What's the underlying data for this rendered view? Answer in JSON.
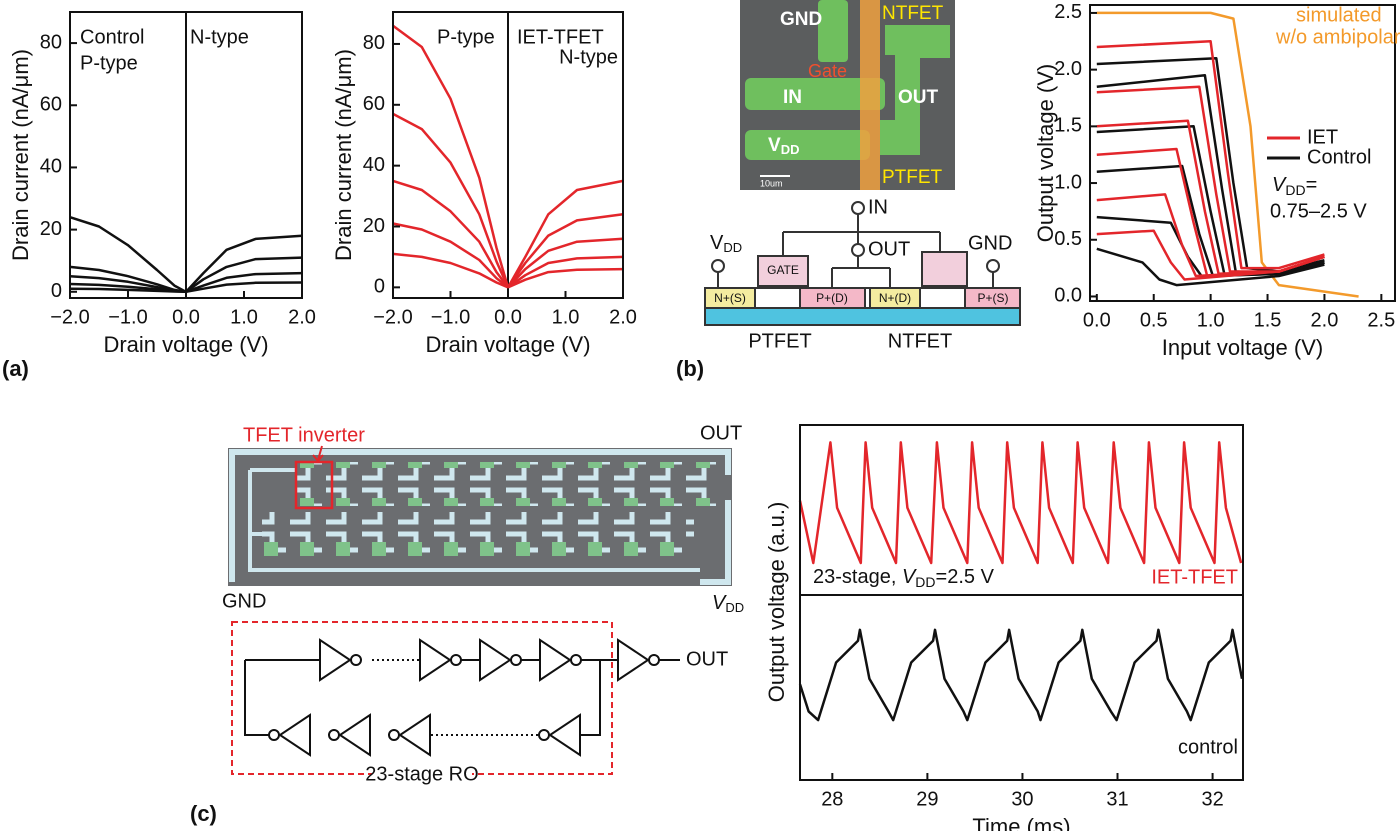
{
  "chart_data": [
    {
      "type": "line",
      "xlabel": "Drain voltage (V)",
      "ylabel": "Drain current (nA/μm)",
      "xlim": [
        -2,
        2
      ],
      "ylim": [
        -2,
        90
      ],
      "xticks": [
        {
          "value": -2,
          "label": "−2.0"
        },
        {
          "value": -1,
          "label": "−1.0"
        },
        {
          "value": 0,
          "label": "0.0"
        },
        {
          "value": 1,
          "label": "1.0"
        },
        {
          "value": 2,
          "label": "2.0"
        }
      ],
      "yticks": [
        0,
        20,
        40,
        60,
        80
      ],
      "vline": 0,
      "annotations": [
        "Control",
        "P-type",
        "N-type"
      ],
      "series": [
        {
          "color": "#111111",
          "x": [
            -2,
            -1.5,
            -1,
            -0.5,
            -0.2,
            0
          ],
          "values": [
            24,
            21,
            15,
            7,
            2,
            0
          ]
        },
        {
          "color": "#111111",
          "x": [
            -2,
            -1.5,
            -1,
            -0.5,
            -0.2,
            0
          ],
          "values": [
            8,
            7,
            5,
            2.4,
            0.6,
            0
          ]
        },
        {
          "color": "#111111",
          "x": [
            -2,
            -1.5,
            -1,
            -0.5,
            -0.2,
            0
          ],
          "values": [
            5,
            4.4,
            3.2,
            1.5,
            0.4,
            0
          ]
        },
        {
          "color": "#111111",
          "x": [
            -2,
            -1.5,
            -1,
            -0.5,
            -0.2,
            0
          ],
          "values": [
            2.5,
            2.2,
            1.6,
            0.8,
            0.2,
            0
          ]
        },
        {
          "color": "#111111",
          "x": [
            -2,
            -1.5,
            -1,
            -0.5,
            -0.2,
            0
          ],
          "values": [
            1,
            0.9,
            0.6,
            0.3,
            0.1,
            0
          ]
        },
        {
          "color": "#111111",
          "x": [
            0,
            0.3,
            0.7,
            1.2,
            2.0
          ],
          "values": [
            0,
            6,
            13.5,
            17,
            18
          ]
        },
        {
          "color": "#111111",
          "x": [
            0,
            0.3,
            0.7,
            1.2,
            2.0
          ],
          "values": [
            0,
            4,
            8,
            10.5,
            11
          ]
        },
        {
          "color": "#111111",
          "x": [
            0,
            0.3,
            0.7,
            1.2,
            2.0
          ],
          "values": [
            0,
            2,
            4.5,
            5.7,
            6
          ]
        },
        {
          "color": "#111111",
          "x": [
            0,
            0.3,
            0.7,
            1.2,
            2.0
          ],
          "values": [
            0,
            1,
            2.3,
            2.9,
            3
          ]
        }
      ]
    },
    {
      "type": "line",
      "xlabel": "Drain voltage (V)",
      "ylabel": "Drain current (nA/μm)",
      "xlim": [
        -2,
        2
      ],
      "ylim": [
        -3.5,
        90.5
      ],
      "xticks": [
        {
          "value": -2,
          "label": "−2.0"
        },
        {
          "value": -1,
          "label": "−1.0"
        },
        {
          "value": 0,
          "label": "0.0"
        },
        {
          "value": 1,
          "label": "1.0"
        },
        {
          "value": 2,
          "label": "2.0"
        }
      ],
      "yticks": [
        0,
        20,
        40,
        60,
        80
      ],
      "vline": 0,
      "annotations": [
        "P-type",
        "IET-TFET",
        "N-type"
      ],
      "series": [
        {
          "color": "#e3262b",
          "x": [
            -2,
            -1.5,
            -1,
            -0.5,
            -0.2,
            0
          ],
          "values": [
            86,
            79,
            62,
            36,
            13,
            0
          ]
        },
        {
          "color": "#e3262b",
          "x": [
            -2,
            -1.5,
            -1,
            -0.5,
            -0.2,
            0
          ],
          "values": [
            57,
            52,
            41,
            24,
            8.5,
            0
          ]
        },
        {
          "color": "#e3262b",
          "x": [
            -2,
            -1.5,
            -1,
            -0.5,
            -0.2,
            0
          ],
          "values": [
            35,
            32,
            25,
            15,
            5,
            0
          ]
        },
        {
          "color": "#e3262b",
          "x": [
            -2,
            -1.5,
            -1,
            -0.5,
            -0.2,
            0
          ],
          "values": [
            21,
            19,
            15,
            9,
            3,
            0
          ]
        },
        {
          "color": "#e3262b",
          "x": [
            -2,
            -1.5,
            -1,
            -0.5,
            -0.2,
            0
          ],
          "values": [
            11,
            10,
            8,
            4.6,
            1.6,
            0
          ]
        },
        {
          "color": "#e3262b",
          "x": [
            0,
            0.3,
            0.7,
            1.2,
            2.0
          ],
          "values": [
            0,
            10,
            24,
            32,
            35
          ]
        },
        {
          "color": "#e3262b",
          "x": [
            0,
            0.3,
            0.7,
            1.2,
            2.0
          ],
          "values": [
            0,
            8,
            17,
            22,
            24
          ]
        },
        {
          "color": "#e3262b",
          "x": [
            0,
            0.3,
            0.7,
            1.2,
            2.0
          ],
          "values": [
            0,
            6,
            12,
            15,
            16
          ]
        },
        {
          "color": "#e3262b",
          "x": [
            0,
            0.3,
            0.7,
            1.2,
            2.0
          ],
          "values": [
            0,
            4,
            8,
            9.5,
            10
          ]
        },
        {
          "color": "#e3262b",
          "x": [
            0,
            0.3,
            0.7,
            1.2,
            2.0
          ],
          "values": [
            0,
            2.5,
            5,
            5.8,
            6
          ]
        }
      ]
    },
    {
      "type": "line",
      "xlabel": "Input voltage (V)",
      "ylabel": "Output voltage (V)",
      "xlim": [
        -0.06,
        2.62
      ],
      "ylim": [
        -0.04,
        2.57
      ],
      "xticks": [
        {
          "value": 0,
          "label": "0.0"
        },
        0.5,
        {
          "value": 1,
          "label": "1.0"
        },
        1.5,
        {
          "value": 2,
          "label": "2.0"
        },
        2.5
      ],
      "yticks": [
        {
          "value": 0,
          "label": "0.0"
        },
        0.5,
        {
          "value": 1,
          "label": "1.0"
        },
        1.5,
        {
          "value": 2,
          "label": "2.0"
        },
        2.5
      ],
      "legend": [
        {
          "name": "IET",
          "color": "#e3262b"
        },
        {
          "name": "Control",
          "color": "#111111"
        }
      ],
      "annotations": [
        "simulated",
        "w/o ambipolarity",
        [
          "V",
          "DD",
          "="
        ],
        "0.75–2.5 V"
      ],
      "series": [
        {
          "color": "#f39a2b",
          "x": [
            0,
            1.0,
            1.2,
            1.35,
            1.45,
            1.6,
            2.3
          ],
          "values": [
            2.5,
            2.5,
            2.45,
            1.5,
            0.3,
            0.1,
            0
          ]
        },
        {
          "color": "#111111",
          "x": [
            0,
            1.05,
            1.2,
            1.32,
            1.6,
            2.0
          ],
          "values": [
            2.05,
            2.1,
            1.0,
            0.25,
            0.22,
            0.32
          ]
        },
        {
          "color": "#111111",
          "x": [
            0,
            0.95,
            1.1,
            1.22,
            1.6,
            2.0
          ],
          "values": [
            1.85,
            1.95,
            0.95,
            0.22,
            0.2,
            0.3
          ]
        },
        {
          "color": "#111111",
          "x": [
            0,
            0.85,
            1.0,
            1.12,
            1.6,
            2.0
          ],
          "values": [
            1.45,
            1.5,
            0.75,
            0.2,
            0.2,
            0.3
          ]
        },
        {
          "color": "#111111",
          "x": [
            0,
            0.75,
            0.9,
            1.02,
            1.6,
            2.0
          ],
          "values": [
            1.1,
            1.15,
            0.55,
            0.18,
            0.2,
            0.3
          ]
        },
        {
          "color": "#111111",
          "x": [
            0,
            0.65,
            0.8,
            0.92,
            1.6,
            2.0
          ],
          "values": [
            0.7,
            0.65,
            0.35,
            0.18,
            0.2,
            0.3
          ]
        },
        {
          "color": "#111111",
          "x": [
            0,
            0.4,
            0.55,
            0.7,
            1.6,
            2.0
          ],
          "values": [
            0.42,
            0.3,
            0.15,
            0.1,
            0.18,
            0.28
          ]
        },
        {
          "color": "#e3262b",
          "x": [
            0,
            1.0,
            1.15,
            1.27,
            1.6,
            2.0
          ],
          "values": [
            2.2,
            2.25,
            1.1,
            0.25,
            0.25,
            0.37
          ]
        },
        {
          "color": "#e3262b",
          "x": [
            0,
            0.9,
            1.05,
            1.17,
            1.6,
            2.0
          ],
          "values": [
            1.8,
            1.85,
            0.9,
            0.22,
            0.22,
            0.35
          ]
        },
        {
          "color": "#e3262b",
          "x": [
            0,
            0.8,
            0.95,
            1.07,
            1.6,
            2.0
          ],
          "values": [
            1.5,
            1.55,
            0.75,
            0.2,
            0.22,
            0.35
          ]
        },
        {
          "color": "#e3262b",
          "x": [
            0,
            0.7,
            0.85,
            0.97,
            1.6,
            2.0
          ],
          "values": [
            1.25,
            1.3,
            0.65,
            0.18,
            0.22,
            0.35
          ]
        },
        {
          "color": "#e3262b",
          "x": [
            0,
            0.6,
            0.75,
            0.87,
            1.6,
            2.0
          ],
          "values": [
            0.85,
            0.9,
            0.45,
            0.18,
            0.22,
            0.35
          ]
        },
        {
          "color": "#e3262b",
          "x": [
            0,
            0.5,
            0.65,
            0.77,
            1.6,
            2.0
          ],
          "values": [
            0.55,
            0.58,
            0.3,
            0.15,
            0.22,
            0.35
          ]
        }
      ]
    },
    {
      "type": "line",
      "ylabel": "Output voltage (a.u.)",
      "xlim": [
        27.66,
        32.32
      ],
      "ylim": [
        -0.1,
        1.07
      ],
      "annotations": [
        [
          "23-stage, ",
          "V",
          "DD",
          "=2.5 V"
        ],
        "IET-TFET"
      ],
      "series": [
        {
          "color": "#e3262b",
          "x": [
            27.66,
            27.8,
            27.98,
            28.05,
            28.3,
            28.35,
            28.42,
            28.67,
            28.72,
            28.79,
            29.04,
            29.1,
            29.17,
            29.42,
            29.47,
            29.54,
            29.79,
            29.84,
            29.91,
            30.16,
            30.21,
            30.28,
            30.53,
            30.58,
            30.65,
            30.9,
            30.96,
            31.03,
            31.28,
            31.33,
            31.4,
            31.65,
            31.7,
            31.77,
            32.02,
            32.07,
            32.14,
            32.3
          ],
          "values": [
            0.55,
            0.12,
            0.95,
            0.5,
            0.12,
            0.95,
            0.5,
            0.12,
            0.95,
            0.5,
            0.12,
            0.95,
            0.5,
            0.12,
            0.95,
            0.5,
            0.12,
            0.95,
            0.5,
            0.12,
            0.95,
            0.5,
            0.12,
            0.95,
            0.5,
            0.12,
            0.95,
            0.5,
            0.12,
            0.95,
            0.5,
            0.12,
            0.95,
            0.5,
            0.12,
            0.95,
            0.5,
            0.12
          ]
        }
      ]
    },
    {
      "type": "line",
      "xlabel": "Time (ms)",
      "xlim": [
        27.66,
        32.32
      ],
      "ylim": [
        -0.43,
        1.27
      ],
      "xticks": [
        28,
        29,
        30,
        31,
        32
      ],
      "annotations": [
        "control"
      ],
      "series": [
        {
          "color": "#111111",
          "x": [
            27.66,
            27.75,
            27.85,
            28.04,
            28.27,
            28.29,
            28.39,
            28.59,
            28.64,
            28.83,
            29.06,
            29.08,
            29.18,
            29.38,
            29.42,
            29.61,
            29.84,
            29.86,
            29.96,
            30.16,
            30.19,
            30.38,
            30.61,
            30.63,
            30.73,
            30.93,
            30.99,
            31.18,
            31.41,
            31.43,
            31.53,
            31.73,
            31.77,
            31.96,
            32.19,
            32.21,
            32.31
          ],
          "values": [
            0.45,
            0.2,
            0.12,
            0.65,
            0.85,
            0.95,
            0.5,
            0.2,
            0.12,
            0.65,
            0.85,
            0.95,
            0.5,
            0.2,
            0.12,
            0.65,
            0.85,
            0.95,
            0.5,
            0.2,
            0.12,
            0.65,
            0.85,
            0.95,
            0.5,
            0.2,
            0.12,
            0.65,
            0.85,
            0.95,
            0.5,
            0.2,
            0.12,
            0.65,
            0.85,
            0.95,
            0.5
          ]
        }
      ]
    }
  ],
  "panel_labels": [
    "(a)",
    "(b)",
    "(c)"
  ],
  "micrograph_b": {
    "gnd": "GND",
    "ntfet": "NTFET",
    "gate": "Gate",
    "in": "IN",
    "out": "OUT",
    "vdd": [
      "V",
      "DD"
    ],
    "ptfet": "PTFET",
    "scale": "10um"
  },
  "schematic_b": {
    "in": "IN",
    "out": "OUT",
    "vdd": [
      "V",
      "DD"
    ],
    "gnd": "GND",
    "gate": "GATE",
    "regions": [
      "N+(S)",
      "P+(D)",
      "N+(D)",
      "P+(S)"
    ],
    "devices": [
      "PTFET",
      "NTFET"
    ]
  },
  "micrograph_c": {
    "callout": "TFET inverter",
    "out": "OUT",
    "gnd": "GND",
    "vdd": [
      "V",
      "DD"
    ]
  },
  "ring_oscillator": {
    "out": "OUT",
    "title": "23-stage RO"
  }
}
